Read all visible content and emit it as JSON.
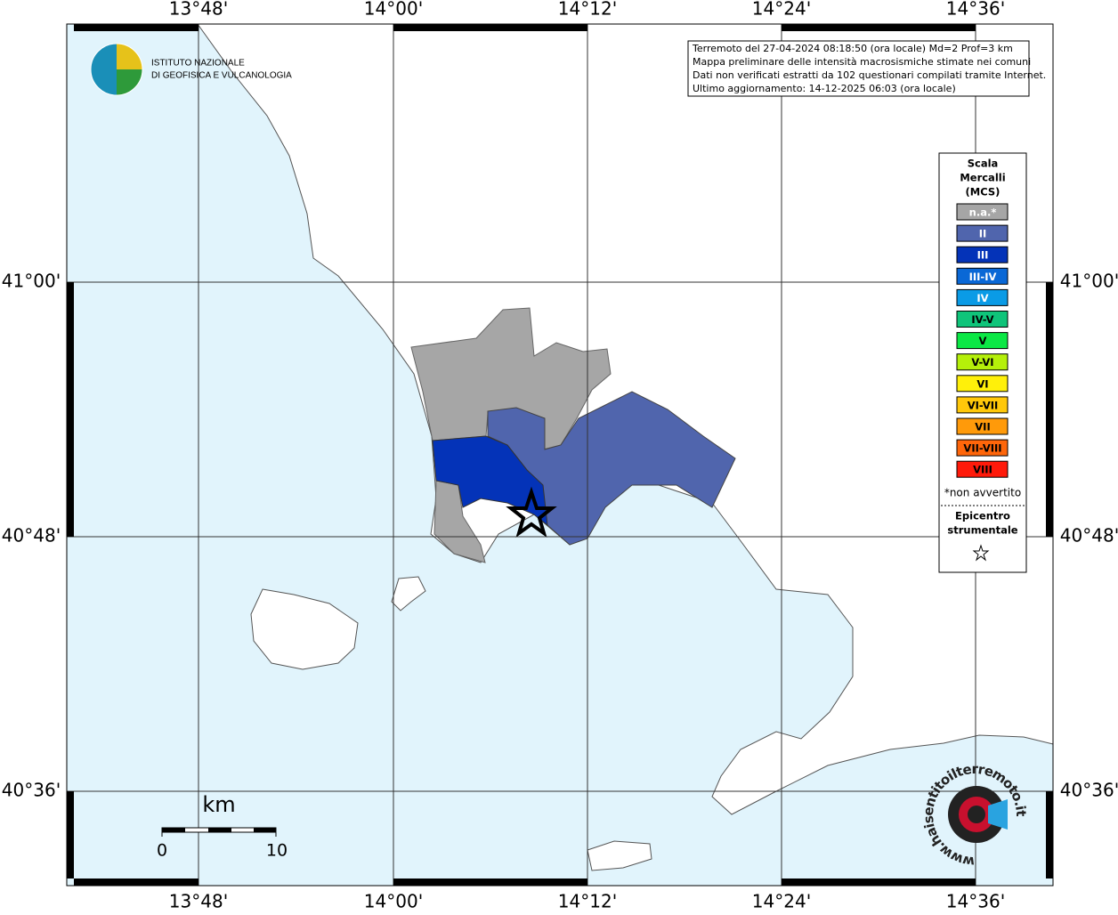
{
  "map": {
    "lon_labels": [
      "13°48'",
      "14°00'",
      "14°12'",
      "14°24'",
      "14°36'"
    ],
    "lat_labels": [
      "41°00'",
      "40°48'",
      "40°36'"
    ],
    "info": [
      "Terremoto del 27-04-2024 08:18:50 (ora locale) Md=2 Prof=3 km",
      "Mappa preliminare delle intensità macrosismiche stimate nei comuni",
      "Dati non verificati estratti da 102 questionari compilati tramite Internet.",
      "Ultimo aggiornamento: 14-12-2025 06:03 (ora locale)"
    ],
    "logo": [
      "ISTITUTO NAZIONALE",
      "DI GEOFISICA E VULCANOLOGIA"
    ],
    "legend": {
      "title": [
        "Scala",
        "Mercalli",
        "(MCS)"
      ],
      "items": [
        {
          "label": "n.a.*",
          "color": "#a6a6a6",
          "text_color": "#ffffff"
        },
        {
          "label": "II",
          "color": "#5065ad",
          "text_color": "#ffffff"
        },
        {
          "label": "III",
          "color": "#0433b8",
          "text_color": "#ffffff"
        },
        {
          "label": "III-IV",
          "color": "#0a68d6",
          "text_color": "#ffffff"
        },
        {
          "label": "IV",
          "color": "#0a9be6",
          "text_color": "#ffffff"
        },
        {
          "label": "IV-V",
          "color": "#0fc47a",
          "text_color": "#000000"
        },
        {
          "label": "V",
          "color": "#0be845",
          "text_color": "#000000"
        },
        {
          "label": "V-VI",
          "color": "#b5f00a",
          "text_color": "#000000"
        },
        {
          "label": "VI",
          "color": "#fff00a",
          "text_color": "#000000"
        },
        {
          "label": "VI-VII",
          "color": "#ffc80a",
          "text_color": "#000000"
        },
        {
          "label": "VII",
          "color": "#ff9a0a",
          "text_color": "#000000"
        },
        {
          "label": "VII-VIII",
          "color": "#ff660a",
          "text_color": "#000000"
        },
        {
          "label": "VIII",
          "color": "#ff1a0a",
          "text_color": "#000000"
        }
      ],
      "footnote": "*non avvertito",
      "epicenter": [
        "Epicentro",
        "strumentale"
      ]
    },
    "scale": {
      "unit": "km",
      "ticks": [
        "0",
        "10"
      ]
    },
    "watermark": "www.haisentitoilterremoto.it"
  }
}
